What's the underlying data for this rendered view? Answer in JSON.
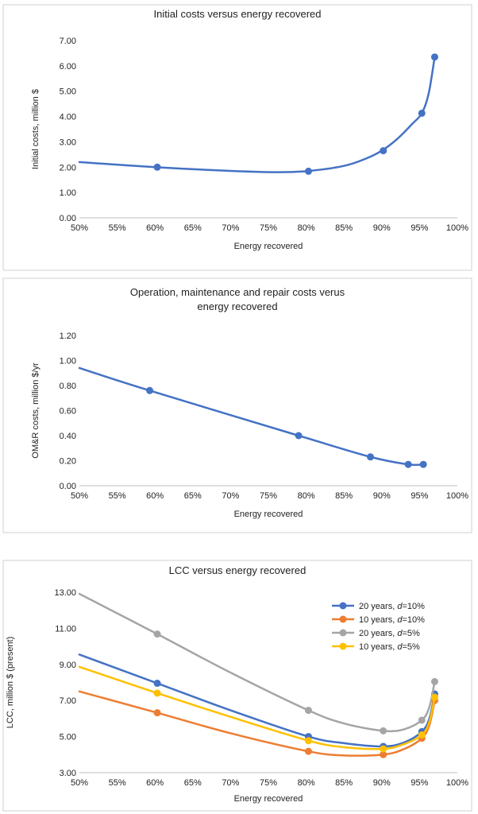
{
  "chart_data": [
    {
      "type": "line",
      "title": "Initial costs versus energy recovered",
      "xlabel": "Energy recovered",
      "ylabel": "Initial costs, million $",
      "xlim": [
        50,
        100
      ],
      "ylim": [
        0,
        7
      ],
      "x_ticks": [
        "50%",
        "55%",
        "60%",
        "65%",
        "70%",
        "75%",
        "80%",
        "85%",
        "90%",
        "95%",
        "100%"
      ],
      "y_ticks": [
        "0.00",
        "1.00",
        "2.00",
        "3.00",
        "4.00",
        "5.00",
        "6.00",
        "7.00"
      ],
      "grid": false,
      "series": [
        {
          "color": "#4472c4",
          "curve": [
            [
              50,
              2.2
            ],
            [
              60,
              2.0
            ],
            [
              70,
              1.85
            ],
            [
              76,
              1.8
            ],
            [
              80,
              1.84
            ],
            [
              85,
              2.05
            ],
            [
              88,
              2.35
            ],
            [
              90,
              2.65
            ],
            [
              92,
              3.1
            ],
            [
              94,
              3.7
            ],
            [
              95.3,
              4.13
            ],
            [
              96.2,
              4.9
            ],
            [
              97,
              6.35
            ]
          ],
          "points": [
            [
              60.3,
              2.0
            ],
            [
              80.3,
              1.84
            ],
            [
              90.2,
              2.65
            ],
            [
              95.3,
              4.13
            ],
            [
              97.0,
              6.35
            ]
          ]
        }
      ]
    },
    {
      "type": "line",
      "title": "Operation, maintenance and repair costs verus energy recovered",
      "xlabel": "Energy recovered",
      "ylabel": "OM&R costs, million $/yr",
      "xlim": [
        50,
        100
      ],
      "ylim": [
        0,
        1.2
      ],
      "x_ticks": [
        "50%",
        "55%",
        "60%",
        "65%",
        "70%",
        "75%",
        "80%",
        "85%",
        "90%",
        "95%",
        "100%"
      ],
      "y_ticks": [
        "0.00",
        "0.20",
        "0.40",
        "0.60",
        "0.80",
        "1.00",
        "1.20"
      ],
      "grid": false,
      "series": [
        {
          "color": "#4472c4",
          "curve": [
            [
              50,
              0.94
            ],
            [
              59.3,
              0.76
            ],
            [
              79,
              0.4
            ],
            [
              88.5,
              0.23
            ],
            [
              93.5,
              0.17
            ],
            [
              95.5,
              0.17
            ]
          ],
          "points": [
            [
              59.3,
              0.76
            ],
            [
              79.0,
              0.4
            ],
            [
              88.5,
              0.23
            ],
            [
              93.5,
              0.17
            ],
            [
              95.5,
              0.17
            ]
          ]
        }
      ]
    },
    {
      "type": "line",
      "title": "LCC versus energy recovered",
      "xlabel": "Energy recovered",
      "ylabel": "LCC, million $ (present)",
      "xlim": [
        50,
        100
      ],
      "ylim": [
        3,
        14
      ],
      "x_ticks": [
        "50%",
        "55%",
        "60%",
        "65%",
        "70%",
        "75%",
        "80%",
        "85%",
        "90%",
        "95%",
        "100%"
      ],
      "y_ticks": [
        "3.00",
        "5.00",
        "7.00",
        "9.00",
        "11.00",
        "13.00"
      ],
      "grid": false,
      "legend": "top-right",
      "series": [
        {
          "name": "20 years, d=10%",
          "legend_prefix": "20 years, ",
          "legend_var": "d",
          "legend_suffix": "=10%",
          "color": "#4472c4",
          "curve": [
            [
              50,
              10.2
            ],
            [
              60.3,
              8.45
            ],
            [
              70,
              6.8
            ],
            [
              80.3,
              5.2
            ],
            [
              85,
              4.8
            ],
            [
              90.2,
              4.6
            ],
            [
              93,
              4.85
            ],
            [
              95.3,
              5.5
            ],
            [
              96.3,
              6.3
            ],
            [
              97,
              7.8
            ]
          ],
          "points": [
            [
              60.3,
              8.45
            ],
            [
              80.3,
              5.2
            ],
            [
              90.2,
              4.6
            ],
            [
              95.3,
              5.5
            ],
            [
              97.0,
              7.8
            ]
          ]
        },
        {
          "name": "10 years, d=10%",
          "legend_prefix": "10 years, ",
          "legend_var": "d",
          "legend_suffix": "=10%",
          "color": "#ed7d31",
          "curve": [
            [
              50,
              7.95
            ],
            [
              60.3,
              6.65
            ],
            [
              70,
              5.4
            ],
            [
              80.3,
              4.3
            ],
            [
              85,
              4.05
            ],
            [
              90.2,
              4.1
            ],
            [
              93,
              4.45
            ],
            [
              95.3,
              5.1
            ],
            [
              96.3,
              5.9
            ],
            [
              97,
              7.4
            ]
          ],
          "points": [
            [
              60.3,
              6.65
            ],
            [
              80.3,
              4.3
            ],
            [
              90.2,
              4.1
            ],
            [
              95.3,
              5.1
            ],
            [
              97.0,
              7.4
            ]
          ]
        },
        {
          "name": "20 years, d=5%",
          "legend_prefix": "20 years, ",
          "legend_var": "d",
          "legend_suffix": "=5%",
          "color": "#a5a5a5",
          "curve": [
            [
              50,
              13.9
            ],
            [
              60.3,
              11.45
            ],
            [
              70,
              9.1
            ],
            [
              80.3,
              6.8
            ],
            [
              85,
              6.0
            ],
            [
              90.2,
              5.55
            ],
            [
              93,
              5.65
            ],
            [
              95.3,
              6.2
            ],
            [
              96.3,
              7.0
            ],
            [
              97,
              8.55
            ]
          ],
          "points": [
            [
              60.3,
              11.45
            ],
            [
              80.3,
              6.8
            ],
            [
              90.2,
              5.55
            ],
            [
              95.3,
              6.2
            ],
            [
              97.0,
              8.55
            ]
          ]
        },
        {
          "name": "10 years, d=5%",
          "legend_prefix": "10 years, ",
          "legend_var": "d",
          "legend_suffix": "=5%",
          "color": "#ffc000",
          "curve": [
            [
              50,
              9.45
            ],
            [
              60.3,
              7.85
            ],
            [
              70,
              6.4
            ],
            [
              80.3,
              4.95
            ],
            [
              85,
              4.55
            ],
            [
              90.2,
              4.45
            ],
            [
              93,
              4.75
            ],
            [
              95.3,
              5.3
            ],
            [
              96.3,
              6.1
            ],
            [
              97,
              7.6
            ]
          ],
          "points": [
            [
              60.3,
              7.85
            ],
            [
              80.3,
              4.95
            ],
            [
              90.2,
              4.45
            ],
            [
              95.3,
              5.3
            ],
            [
              97.0,
              7.6
            ]
          ]
        }
      ]
    }
  ]
}
